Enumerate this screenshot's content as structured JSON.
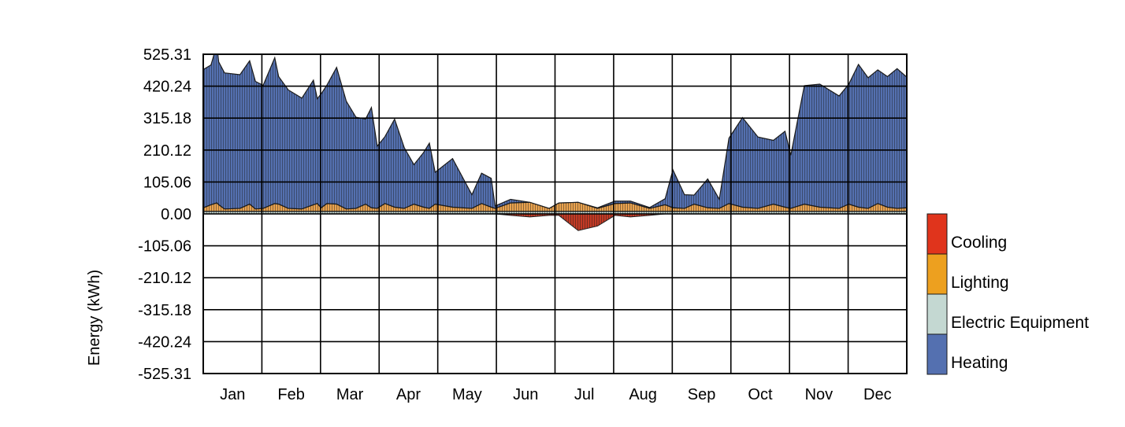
{
  "chart_data": {
    "type": "area",
    "title": "",
    "xlabel": "",
    "ylabel": "Energy (kWh)",
    "ylim": [
      -525.31,
      525.31
    ],
    "yticks": [
      525.31,
      420.24,
      315.18,
      210.12,
      105.06,
      0.0,
      -105.06,
      -210.12,
      -315.18,
      -420.24,
      -525.31
    ],
    "ytick_labels": [
      "525.31",
      "420.24",
      "315.18",
      "210.12",
      "105.06",
      "0.00",
      "-105.06",
      "-210.12",
      "-315.18",
      "-420.24",
      "-525.31"
    ],
    "categories": [
      "Jan",
      "Feb",
      "Mar",
      "Apr",
      "May",
      "Jun",
      "Jul",
      "Aug",
      "Sep",
      "Oct",
      "Nov",
      "Dec"
    ],
    "grid": true,
    "legend_position": "right",
    "x_unit": "day of year",
    "x": [
      1,
      5,
      8,
      9,
      12,
      20,
      25,
      28,
      32,
      38,
      40,
      45,
      52,
      58,
      60,
      62,
      65,
      70,
      75,
      80,
      85,
      88,
      91,
      95,
      100,
      105,
      110,
      115,
      118,
      121,
      130,
      140,
      145,
      150,
      152,
      160,
      170,
      180,
      185,
      195,
      205,
      214,
      222,
      232,
      240,
      244,
      250,
      255,
      262,
      268,
      273,
      280,
      288,
      296,
      302,
      305,
      312,
      320,
      330,
      335,
      340,
      345,
      350,
      355,
      360,
      365
    ],
    "series": [
      {
        "name": "Heating",
        "color": "#5470b0",
        "values": [
          455,
          460,
          520,
          470,
          448,
          440,
          472,
          420,
          405,
          480,
          420,
          390,
          365,
          410,
          345,
          375,
          390,
          450,
          355,
          300,
          280,
          330,
          205,
          220,
          290,
          200,
          130,
          180,
          215,
          105,
          160,
          45,
          100,
          95,
          8,
          12,
          0,
          0,
          0,
          0,
          2,
          8,
          6,
          3,
          20,
          125,
          45,
          30,
          95,
          30,
          215,
          295,
          235,
          210,
          250,
          175,
          390,
          405,
          370,
          395,
          470,
          430,
          440,
          430,
          460,
          430
        ]
      },
      {
        "name": "Electric Equipment",
        "color": "#c4d8d2",
        "values": [
          8,
          8,
          8,
          8,
          8,
          8,
          8,
          8,
          8,
          8,
          8,
          8,
          8,
          8,
          8,
          8,
          8,
          8,
          8,
          8,
          8,
          8,
          8,
          8,
          8,
          8,
          8,
          8,
          8,
          8,
          8,
          8,
          8,
          8,
          8,
          8,
          8,
          8,
          8,
          8,
          8,
          8,
          8,
          8,
          8,
          8,
          8,
          8,
          8,
          8,
          8,
          8,
          8,
          8,
          8,
          8,
          8,
          8,
          8,
          8,
          8,
          8,
          8,
          8,
          8,
          8
        ]
      },
      {
        "name": "Lighting",
        "color": "#e9a24e",
        "values": [
          12,
          22,
          28,
          22,
          8,
          10,
          24,
          8,
          10,
          26,
          24,
          10,
          8,
          22,
          26,
          12,
          26,
          24,
          8,
          10,
          24,
          12,
          10,
          26,
          14,
          10,
          24,
          14,
          10,
          24,
          14,
          10,
          26,
          14,
          10,
          28,
          30,
          10,
          28,
          30,
          10,
          26,
          28,
          10,
          22,
          12,
          10,
          24,
          12,
          10,
          26,
          14,
          10,
          24,
          14,
          10,
          24,
          14,
          10,
          24,
          14,
          10,
          26,
          14,
          10,
          12
        ]
      },
      {
        "name": "Cooling",
        "color": "#c23a25",
        "values": [
          0,
          0,
          0,
          0,
          0,
          0,
          0,
          0,
          0,
          0,
          0,
          0,
          0,
          0,
          0,
          0,
          0,
          0,
          0,
          0,
          0,
          0,
          0,
          0,
          0,
          0,
          0,
          0,
          0,
          0,
          0,
          0,
          0,
          0,
          0,
          -5,
          -10,
          -5,
          -5,
          -55,
          -40,
          -5,
          -10,
          -5,
          0,
          0,
          0,
          0,
          0,
          0,
          0,
          0,
          0,
          0,
          0,
          0,
          0,
          0,
          0,
          0,
          0,
          0,
          0,
          0,
          0,
          0
        ]
      }
    ],
    "legend": [
      {
        "label": "Cooling",
        "color": "#e0341c"
      },
      {
        "label": "Lighting",
        "color": "#eda01f"
      },
      {
        "label": "Electric Equipment",
        "color": "#c4d8d2"
      },
      {
        "label": "Heating",
        "color": "#5470b0"
      }
    ]
  }
}
